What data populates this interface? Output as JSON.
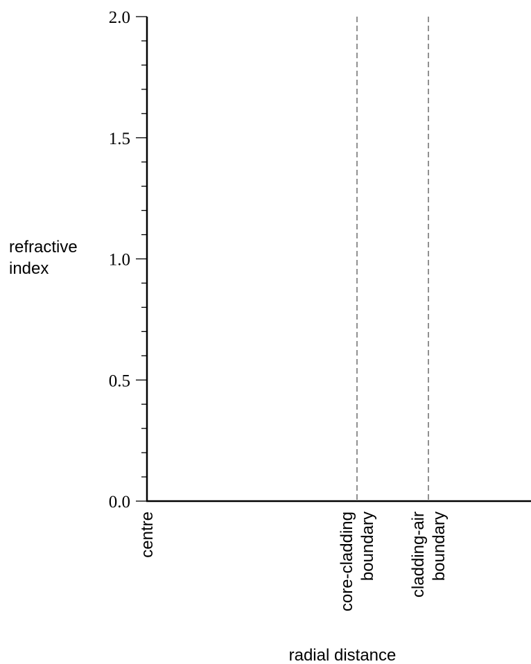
{
  "chart_data": {
    "type": "line",
    "title": "",
    "xlabel": "radial distance",
    "ylabel_lines": [
      "refractive",
      "index"
    ],
    "ylim": [
      0,
      2.0
    ],
    "y_major_ticks": [
      {
        "value": 0.0,
        "label": "0.0"
      },
      {
        "value": 0.5,
        "label": "0.5"
      },
      {
        "value": 1.0,
        "label": "1.0"
      },
      {
        "value": 1.5,
        "label": "1.5"
      },
      {
        "value": 2.0,
        "label": "2.0"
      }
    ],
    "y_minor_step": 0.1,
    "x_markers": [
      {
        "id": "centre",
        "lines": [
          "centre"
        ],
        "dashed_line": false
      },
      {
        "id": "core-cladding",
        "lines": [
          "core-cladding",
          "boundary"
        ],
        "dashed_line": true
      },
      {
        "id": "cladding-air",
        "lines": [
          "cladding-air",
          "boundary"
        ],
        "dashed_line": true
      }
    ],
    "series": [],
    "grid": false,
    "legend": "none"
  }
}
